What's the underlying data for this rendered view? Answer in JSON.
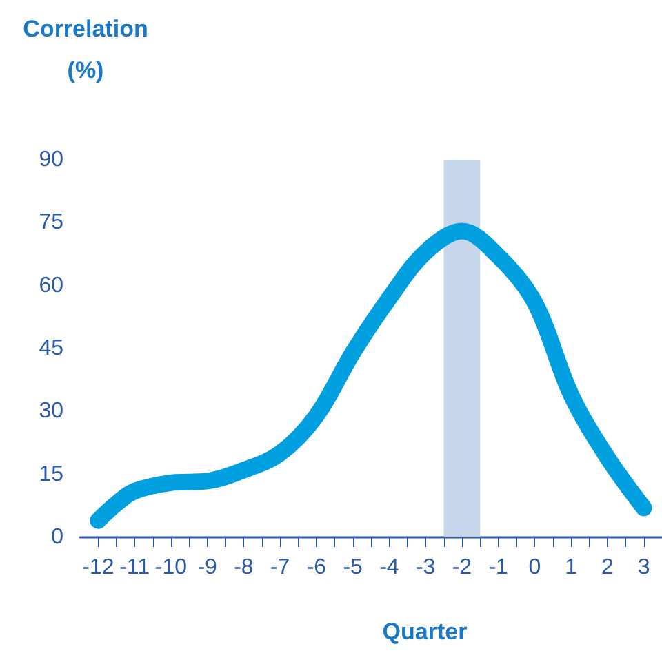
{
  "chart_data": {
    "type": "line",
    "ylabel": "Correlation\n(%)",
    "xlabel": "Quarter",
    "x": [
      -12,
      -11.5,
      -11,
      -10,
      -9,
      -8,
      -7,
      -6,
      -5,
      -4,
      -3,
      -2,
      -1,
      0,
      1,
      2,
      3
    ],
    "series": [
      {
        "color": "#009fe0",
        "values": [
          4,
          8,
          11,
          13,
          13.4,
          16,
          20,
          29,
          44,
          57,
          68,
          73,
          67,
          56,
          34,
          19,
          7
        ]
      }
    ],
    "xlim": [
      -12.5,
      3.5
    ],
    "xticks": [
      -12,
      -11,
      -10,
      -9,
      -8,
      -7,
      -6,
      -5,
      -4,
      -3,
      -2,
      -1,
      0,
      1,
      2,
      3,
      {
        "value": -11.5,
        "label": null
      },
      {
        "value": -10.5,
        "label": null
      },
      {
        "value": -9.5,
        "label": null
      },
      {
        "value": -8.5,
        "label": null
      },
      {
        "value": -7.5,
        "label": null
      },
      {
        "value": -6.5,
        "label": null
      },
      {
        "value": -5.5,
        "label": null
      },
      {
        "value": -4.5,
        "label": null
      },
      {
        "value": -3.5,
        "label": null
      },
      {
        "value": -2.5,
        "label": null
      },
      {
        "value": -1.5,
        "label": null
      },
      {
        "value": -0.5,
        "label": null
      },
      {
        "value": 0.5,
        "label": null
      },
      {
        "value": 1.5,
        "label": null
      },
      {
        "value": 2.5,
        "label": null
      }
    ],
    "ylim": [
      0,
      90
    ],
    "yticks": [
      0,
      15,
      30,
      45,
      60,
      75,
      90
    ],
    "bands": [
      {
        "axis": "x",
        "from": -2.5,
        "to": -1.5,
        "color": "#bccfe8"
      }
    ],
    "grid": false,
    "line_style": "solid"
  }
}
